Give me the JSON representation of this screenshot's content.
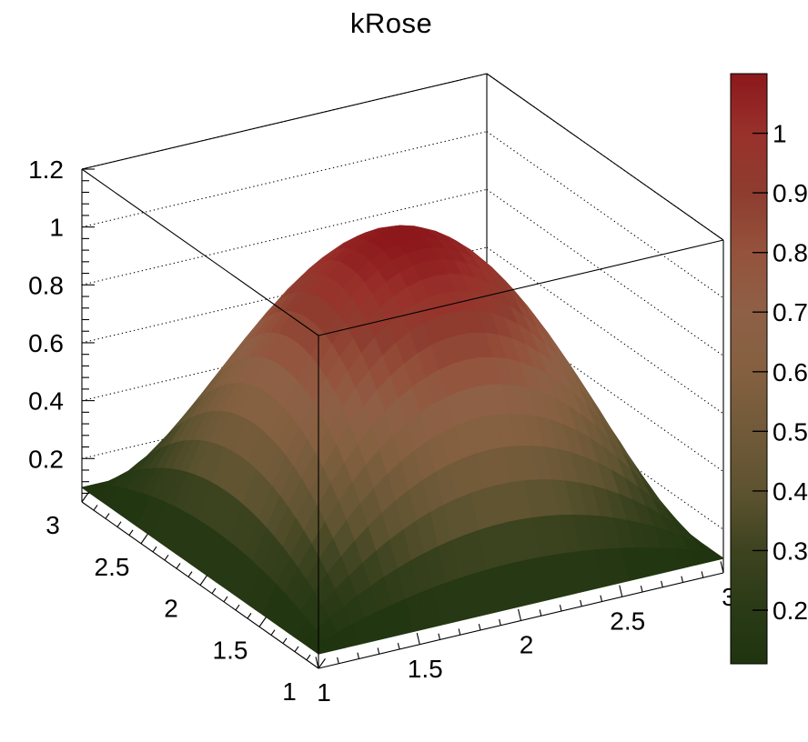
{
  "title": "kRose",
  "chart_data": {
    "type": "surface",
    "title": "kRose",
    "palette_name": "kRose",
    "function": "z = 0.1 + (1 - (x-2)^2) * (1 - (y-2)^2)",
    "x_range": [
      1,
      3
    ],
    "y_range": [
      1,
      3
    ],
    "z_axis_range": [
      0.05,
      1.2
    ],
    "z_data_min": 0.1,
    "z_data_max": 1.1,
    "grid_steps": 30,
    "contour_levels": 99,
    "grid_lines": "dotted horizontal lines on back walls at each z major tick",
    "x_axis": {
      "tick_values": [
        1,
        1.5,
        2,
        2.5,
        3
      ],
      "tick_labels": [
        "1",
        "1.5",
        "2",
        "2.5",
        "3"
      ],
      "minor_step": 0.1
    },
    "y_axis": {
      "tick_values": [
        1,
        1.5,
        2,
        2.5,
        3
      ],
      "tick_labels": [
        "1",
        "1.5",
        "2",
        "2.5",
        "3"
      ],
      "minor_step": 0.1
    },
    "z_axis": {
      "tick_values": [
        0.2,
        0.4,
        0.6,
        0.8,
        1.0,
        1.2
      ],
      "tick_labels": [
        "0.2",
        "0.4",
        "0.6",
        "0.8",
        "1",
        "1.2"
      ],
      "minor_step": 0.04
    },
    "colorbar": {
      "range": [
        0.11,
        1.1
      ],
      "tick_values": [
        0.2,
        0.3,
        0.4,
        0.5,
        0.6,
        0.7,
        0.8,
        0.9,
        1.0
      ],
      "tick_labels": [
        "0.2",
        "0.3",
        "0.4",
        "0.5",
        "0.6",
        "0.7",
        "0.8",
        "0.9",
        "1"
      ]
    },
    "palette_stops": [
      {
        "value": 0.11,
        "color": "#1F3410"
      },
      {
        "value": 0.2,
        "color": "#2A3A16"
      },
      {
        "value": 0.3,
        "color": "#3D431F"
      },
      {
        "value": 0.4,
        "color": "#5E5330"
      },
      {
        "value": 0.5,
        "color": "#715A39"
      },
      {
        "value": 0.6,
        "color": "#846040"
      },
      {
        "value": 0.7,
        "color": "#8E6046"
      },
      {
        "value": 0.8,
        "color": "#95523C"
      },
      {
        "value": 0.9,
        "color": "#8E3D2F"
      },
      {
        "value": 1.0,
        "color": "#99312B"
      },
      {
        "value": 1.1,
        "color": "#8C181C"
      }
    ],
    "frame_color": "#000000",
    "background_color": "#ffffff"
  }
}
